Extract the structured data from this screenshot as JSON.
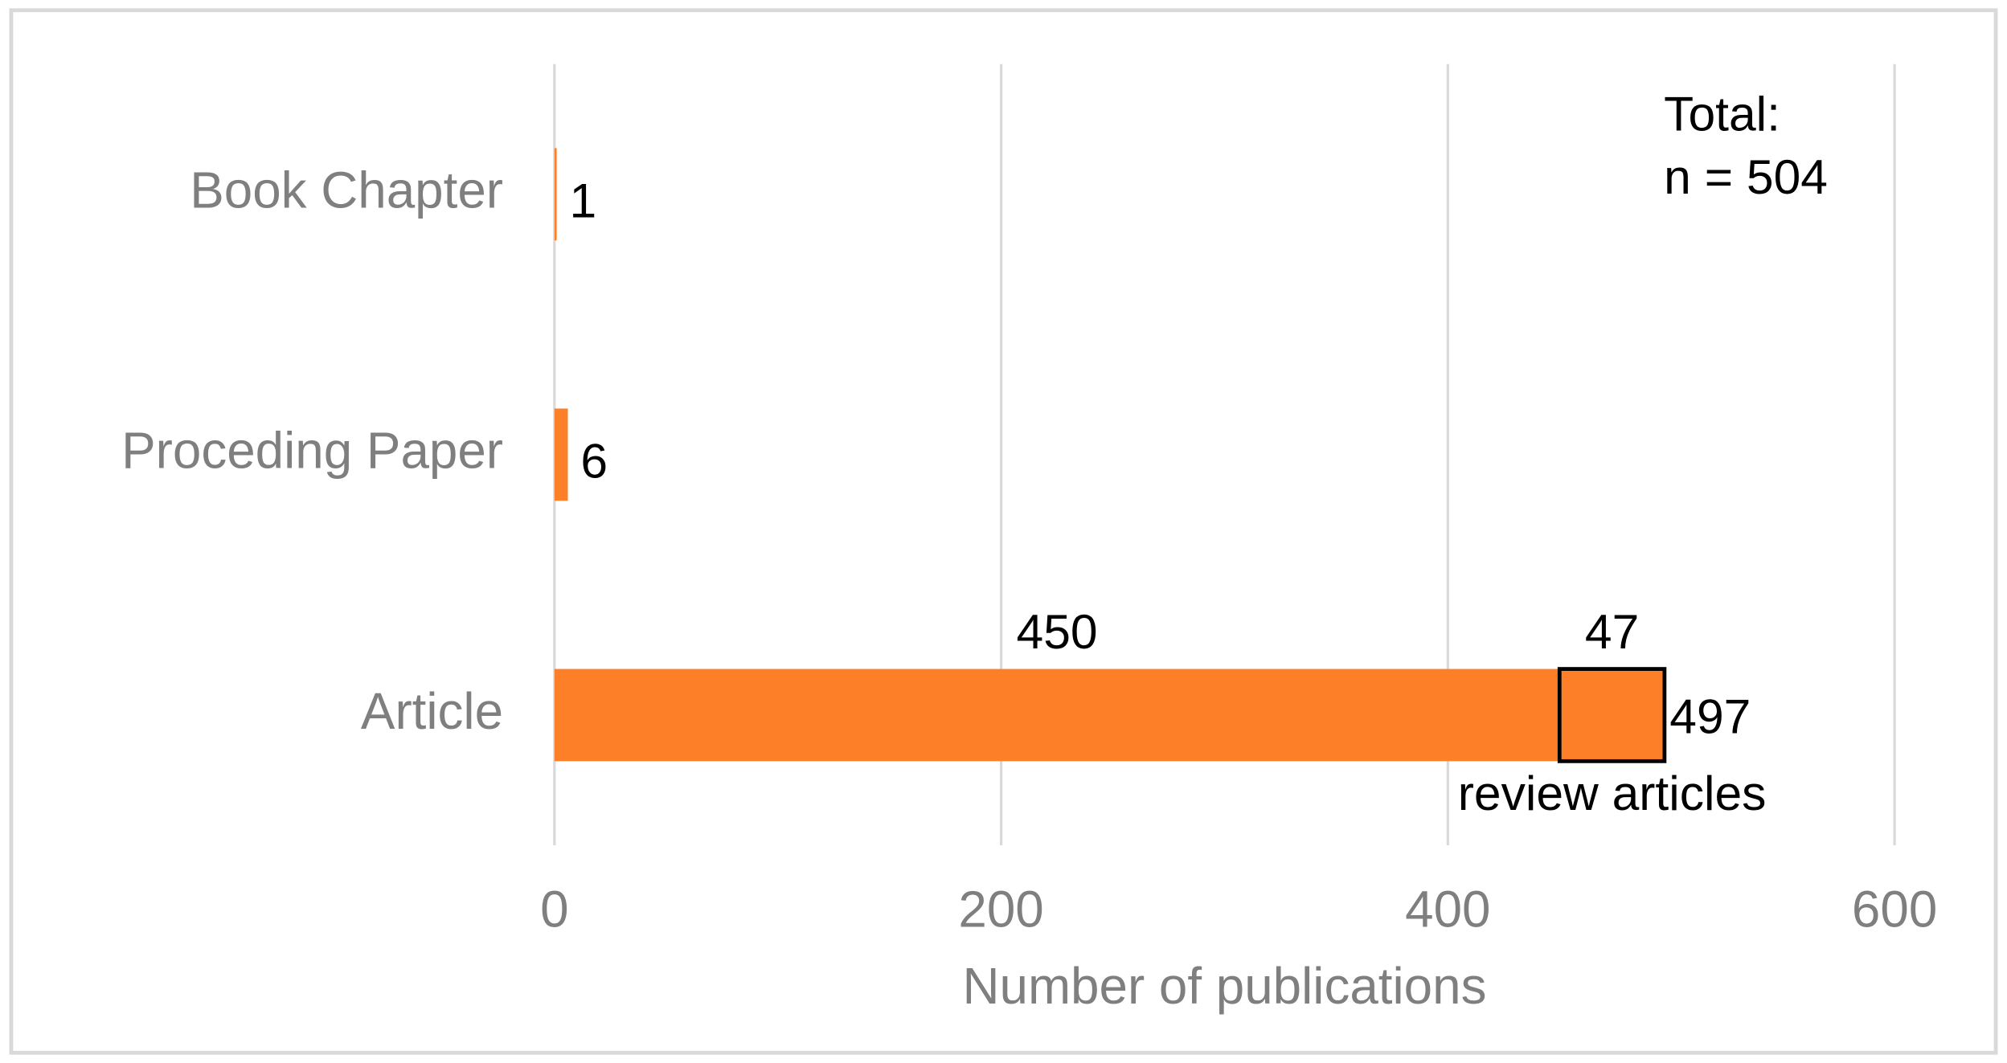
{
  "chart_data": {
    "type": "bar",
    "orientation": "horizontal",
    "categories": [
      "Book Chapter",
      "Proceding Paper",
      "Article"
    ],
    "values": [
      1,
      6,
      497
    ],
    "color": "#fd7f28",
    "article_segments": [
      {
        "value": 450
      },
      {
        "value": 47,
        "label": "review articles",
        "outlined": true
      }
    ],
    "xlabel": "Number of publications",
    "xlim": [
      0,
      600
    ],
    "xticks": [
      0,
      200,
      400,
      600
    ],
    "grid": true,
    "annotation": [
      "Total:",
      "n = 504"
    ]
  }
}
